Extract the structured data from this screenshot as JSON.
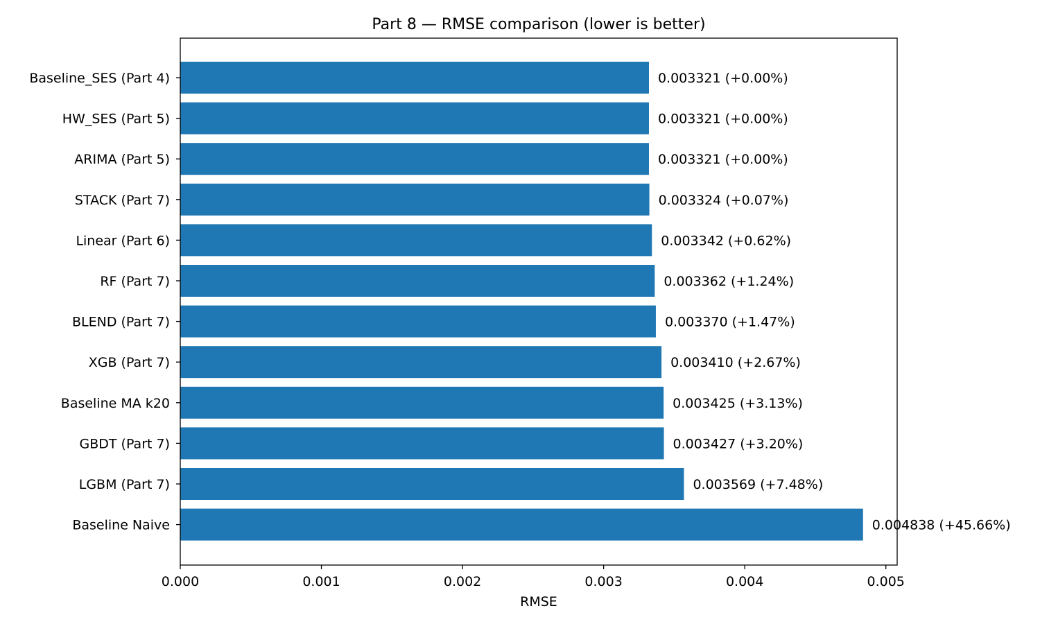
{
  "chart_data": {
    "type": "bar",
    "orientation": "horizontal",
    "title": "Part 8 — RMSE comparison (lower is better)",
    "xlabel": "RMSE",
    "ylabel": "",
    "xlim": [
      0,
      0.00508
    ],
    "xticks": [
      "0.000",
      "0.001",
      "0.002",
      "0.003",
      "0.004",
      "0.005"
    ],
    "xtick_values": [
      0,
      0.001,
      0.002,
      0.003,
      0.004,
      0.005
    ],
    "grid": false,
    "bar_color": "#1f77b4",
    "categories": [
      "Baseline_SES (Part 4)",
      "HW_SES (Part 5)",
      "ARIMA (Part 5)",
      "STACK (Part 7)",
      "Linear (Part 6)",
      "RF (Part 7)",
      "BLEND (Part 7)",
      "XGB (Part 7)",
      "Baseline MA k20",
      "GBDT (Part 7)",
      "LGBM (Part 7)",
      "Baseline Naive"
    ],
    "values": [
      0.003321,
      0.003321,
      0.003321,
      0.003324,
      0.003342,
      0.003362,
      0.00337,
      0.00341,
      0.003425,
      0.003427,
      0.003569,
      0.004838
    ],
    "data_labels": [
      "0.003321  (+0.00%)",
      "0.003321  (+0.00%)",
      "0.003321  (+0.00%)",
      "0.003324  (+0.07%)",
      "0.003342  (+0.62%)",
      "0.003362  (+1.24%)",
      "0.003370  (+1.47%)",
      "0.003410  (+2.67%)",
      "0.003425  (+3.13%)",
      "0.003427  (+3.20%)",
      "0.003569  (+7.48%)",
      "0.004838  (+45.66%)"
    ]
  }
}
